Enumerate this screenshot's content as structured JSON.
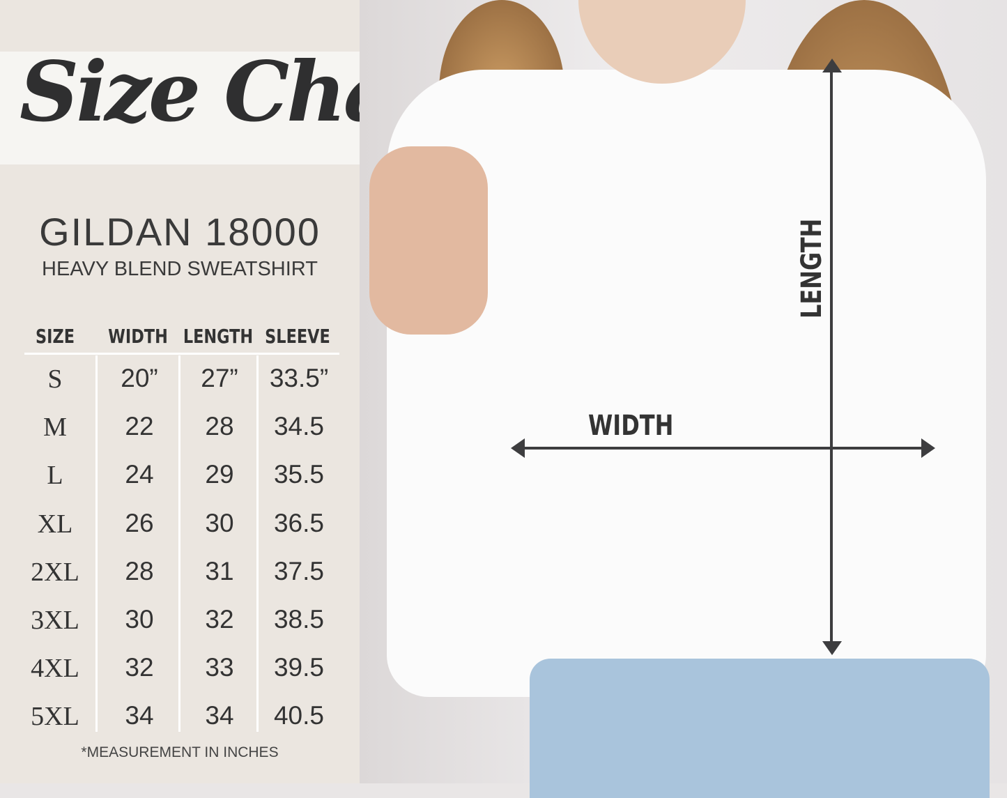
{
  "title": "Size Chart",
  "brand": "GILDAN 18000",
  "subtitle": "HEAVY BLEND SWEATSHIRT",
  "table": {
    "headers": [
      "SIZE",
      "WIDTH",
      "LENGTH",
      "SLEEVE"
    ],
    "rows": [
      [
        "S",
        "20”",
        "27”",
        "33.5”"
      ],
      [
        "M",
        "22",
        "28",
        "34.5"
      ],
      [
        "L",
        "24",
        "29",
        "35.5"
      ],
      [
        "XL",
        "26",
        "30",
        "36.5"
      ],
      [
        "2XL",
        "28",
        "31",
        "37.5"
      ],
      [
        "3XL",
        "30",
        "32",
        "38.5"
      ],
      [
        "4XL",
        "32",
        "33",
        "39.5"
      ],
      [
        "5XL",
        "34",
        "34",
        "40.5"
      ]
    ]
  },
  "note": "*MEASUREMENT IN INCHES",
  "diagram": {
    "length_label": "LENGTH",
    "width_label": "WIDTH"
  },
  "colors": {
    "panel": "#ebe6e0",
    "text": "#333333",
    "arrow": "#3d3d3f"
  }
}
